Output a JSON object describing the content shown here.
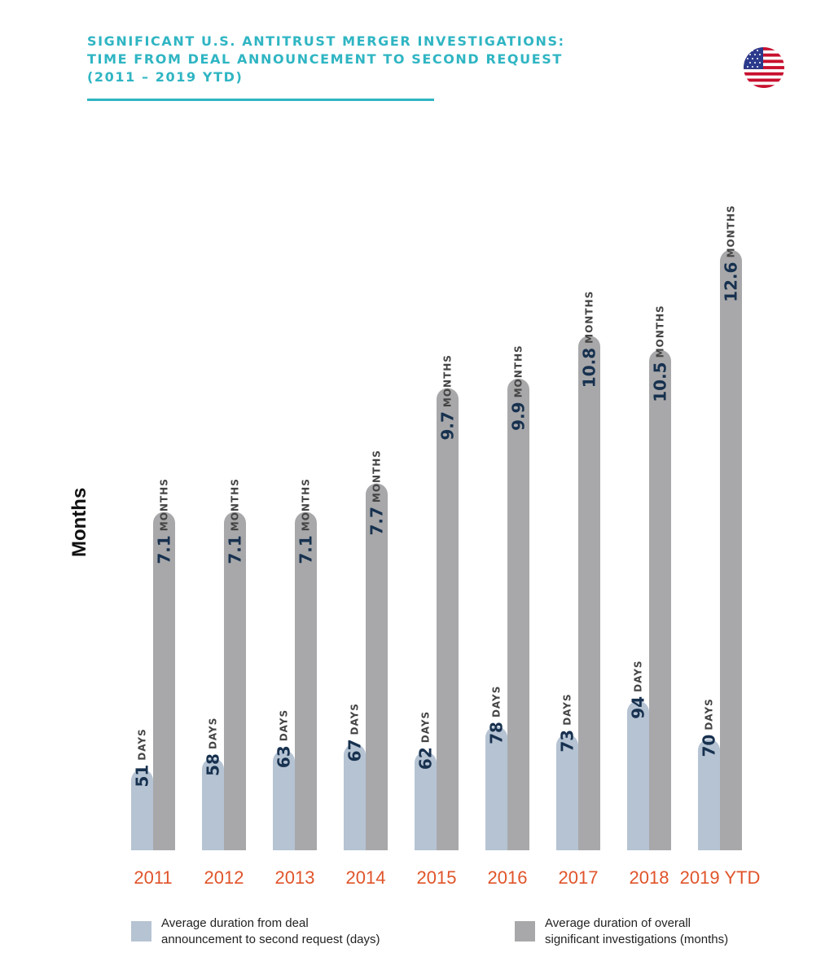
{
  "title": {
    "line1": "SIGNIFICANT U.S. ANTITRUST MERGER INVESTIGATIONS:",
    "line2": "TIME FROM DEAL ANNOUNCEMENT TO SECOND REQUEST",
    "line3": "(2011 – 2019 YTD)"
  },
  "colors": {
    "title": "#2fb5c3",
    "days_bar": "#b5c3d3",
    "months_bar": "#a8a8aa",
    "value_text": "#17314f",
    "unit_text": "#444444",
    "year_text": "#e0542a"
  },
  "icons": {
    "flag": "us-flag-icon"
  },
  "legend": {
    "days": {
      "line1": "Average duration from deal",
      "line2": "announcement to second request (days)"
    },
    "months": {
      "line1": "Average duration of overall",
      "line2": "significant investigations (months)"
    }
  },
  "chart_data": {
    "type": "bar",
    "ylabel": "Months",
    "categories": [
      "2011",
      "2012",
      "2013",
      "2014",
      "2015",
      "2016",
      "2017",
      "2018",
      "2019 YTD"
    ],
    "series": [
      {
        "name": "Average duration from deal announcement to second request (days)",
        "unit": "DAYS",
        "values": [
          51,
          58,
          63,
          67,
          62,
          78,
          73,
          94,
          70
        ]
      },
      {
        "name": "Average duration of overall significant investigations (months)",
        "unit": "MONTHS",
        "values": [
          7.1,
          7.1,
          7.1,
          7.7,
          9.7,
          9.9,
          10.8,
          10.5,
          12.6
        ]
      }
    ],
    "grid": false,
    "legend_position": "bottom"
  }
}
